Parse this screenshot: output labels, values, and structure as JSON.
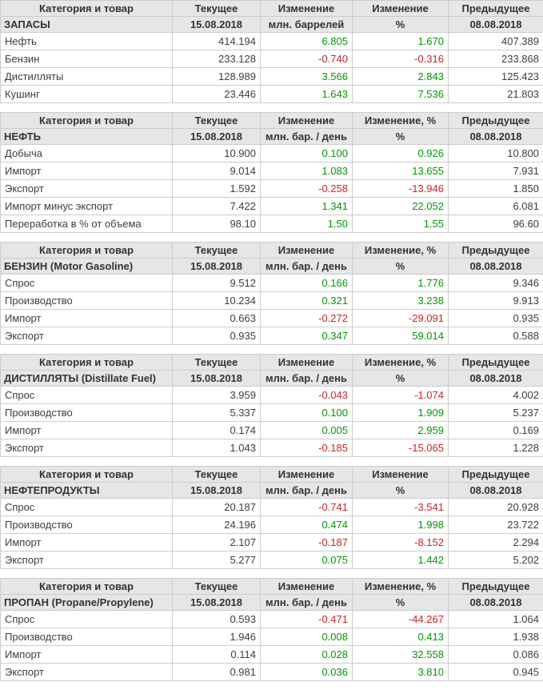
{
  "colors": {
    "header_bg": "#e6e6e6",
    "header_text": "#333333",
    "text": "#3d3d3d",
    "border": "#cccccc",
    "positive": "#009900",
    "negative": "#cc2222"
  },
  "chart_data": [
    {
      "type": "table",
      "title": "ЗАПАСЫ",
      "headers": [
        "Категория и товар",
        "Текущее",
        "Изменение",
        "Изменение",
        "Предыдущее"
      ],
      "subheaders": [
        "ЗАПАСЫ",
        "15.08.2018",
        "млн. баррелей",
        "%",
        "08.08.2018"
      ],
      "rows": [
        {
          "category": "Нефть",
          "current": "414.194",
          "change": "6.805",
          "change_pct": "1.670",
          "previous": "407.389"
        },
        {
          "category": "Бензин",
          "current": "233.128",
          "change": "-0.740",
          "change_pct": "-0.316",
          "previous": "233.868"
        },
        {
          "category": "Дистилляты",
          "current": "128.989",
          "change": "3.566",
          "change_pct": "2.843",
          "previous": "125.423"
        },
        {
          "category": "Кушинг",
          "current": "23.446",
          "change": "1.643",
          "change_pct": "7.536",
          "previous": "21.803"
        }
      ]
    },
    {
      "type": "table",
      "title": "НЕФТЬ",
      "headers": [
        "Категория и товар",
        "Текущее",
        "Изменение",
        "Изменение, %",
        "Предыдущее"
      ],
      "subheaders": [
        "НЕФТЬ",
        "15.08.2018",
        "млн. бар. / день",
        "%",
        "08.08.2018"
      ],
      "rows": [
        {
          "category": "Добыча",
          "current": "10.900",
          "change": "0.100",
          "change_pct": "0.926",
          "previous": "10.800"
        },
        {
          "category": "Импорт",
          "current": "9.014",
          "change": "1.083",
          "change_pct": "13.655",
          "previous": "7.931"
        },
        {
          "category": "Экспорт",
          "current": "1.592",
          "change": "-0.258",
          "change_pct": "-13.946",
          "previous": "1.850"
        },
        {
          "category": "Импорт минус экспорт",
          "current": "7.422",
          "change": "1.341",
          "change_pct": "22.052",
          "previous": "6.081"
        },
        {
          "category": "Переработка в % от объема",
          "current": "98.10",
          "change": "1.50",
          "change_pct": "1.55",
          "previous": "96.60"
        }
      ]
    },
    {
      "type": "table",
      "title": "БЕНЗИН (Motor Gasoline)",
      "headers": [
        "Категория и товар",
        "Текущее",
        "Изменение",
        "Изменение, %",
        "Предыдущее"
      ],
      "subheaders": [
        "БЕНЗИН (Motor Gasoline)",
        "15.08.2018",
        "млн. бар. / день",
        "%",
        "08.08.2018"
      ],
      "rows": [
        {
          "category": "Спрос",
          "current": "9.512",
          "change": "0.166",
          "change_pct": "1.776",
          "previous": "9.346"
        },
        {
          "category": "Производство",
          "current": "10.234",
          "change": "0.321",
          "change_pct": "3.238",
          "previous": "9.913"
        },
        {
          "category": "Импорт",
          "current": "0.663",
          "change": "-0.272",
          "change_pct": "-29.091",
          "previous": "0.935"
        },
        {
          "category": "Экспорт",
          "current": "0.935",
          "change": "0.347",
          "change_pct": "59.014",
          "previous": "0.588"
        }
      ]
    },
    {
      "type": "table",
      "title": "ДИСТИЛЛЯТЫ (Distillate Fuel)",
      "headers": [
        "Категория и товар",
        "Текущее",
        "Изменение",
        "Изменение, %",
        "Предыдущее"
      ],
      "subheaders": [
        "ДИСТИЛЛЯТЫ (Distillate Fuel)",
        "15.08.2018",
        "млн. бар. / день",
        "%",
        "08.08.2018"
      ],
      "rows": [
        {
          "category": "Спрос",
          "current": "3.959",
          "change": "-0.043",
          "change_pct": "-1.074",
          "previous": "4.002"
        },
        {
          "category": "Производство",
          "current": "5.337",
          "change": "0.100",
          "change_pct": "1.909",
          "previous": "5.237"
        },
        {
          "category": "Импорт",
          "current": "0.174",
          "change": "0.005",
          "change_pct": "2.959",
          "previous": "0.169"
        },
        {
          "category": "Экспорт",
          "current": "1.043",
          "change": "-0.185",
          "change_pct": "-15.065",
          "previous": "1.228"
        }
      ]
    },
    {
      "type": "table",
      "title": "НЕФТЕПРОДУКТЫ",
      "headers": [
        "Категория и товар",
        "Текущее",
        "Изменение",
        "Изменение",
        "Предыдущее"
      ],
      "subheaders": [
        "НЕФТЕПРОДУКТЫ",
        "15.08.2018",
        "млн. бар. / день",
        "%",
        "08.08.2018"
      ],
      "rows": [
        {
          "category": "Спрос",
          "current": "20.187",
          "change": "-0.741",
          "change_pct": "-3.541",
          "previous": "20.928"
        },
        {
          "category": "Производство",
          "current": "24.196",
          "change": "0.474",
          "change_pct": "1.998",
          "previous": "23.722"
        },
        {
          "category": "Импорт",
          "current": "2.107",
          "change": "-0.187",
          "change_pct": "-8.152",
          "previous": "2.294"
        },
        {
          "category": "Экспорт",
          "current": "5.277",
          "change": "0.075",
          "change_pct": "1.442",
          "previous": "5.202"
        }
      ]
    },
    {
      "type": "table",
      "title": "ПРОПАН (Propane/Propylene)",
      "headers": [
        "Категория и товар",
        "Текущее",
        "Изменение",
        "Изменение, %",
        "Предыдущее"
      ],
      "subheaders": [
        "ПРОПАН (Propane/Propylene)",
        "15.08.2018",
        "млн. бар. / день",
        "%",
        "08.08.2018"
      ],
      "rows": [
        {
          "category": "Спрос",
          "current": "0.593",
          "change": "-0.471",
          "change_pct": "-44.267",
          "previous": "1.064"
        },
        {
          "category": "Производство",
          "current": "1.946",
          "change": "0.008",
          "change_pct": "0.413",
          "previous": "1.938"
        },
        {
          "category": "Импорт",
          "current": "0.114",
          "change": "0.028",
          "change_pct": "32.558",
          "previous": "0.086"
        },
        {
          "category": "Экспорт",
          "current": "0.981",
          "change": "0.036",
          "change_pct": "3.810",
          "previous": "0.945"
        }
      ]
    }
  ]
}
